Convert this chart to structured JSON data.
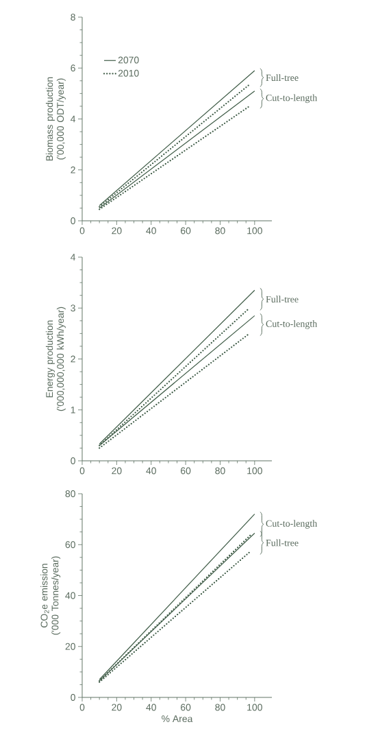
{
  "chart_data": [
    {
      "type": "line",
      "ylabel": "Biomass production ('00,000 ODT/year)",
      "xlim": [
        0,
        110
      ],
      "xticks": [
        0,
        20,
        40,
        60,
        80,
        100
      ],
      "ylim": [
        0,
        8
      ],
      "yticks": [
        0,
        2,
        4,
        6,
        8
      ],
      "legend": "top left",
      "marker": "none",
      "series": [
        {
          "name": "2070",
          "color": "#3d5a45",
          "line_style": "solid",
          "x": [
            10,
            100
          ],
          "values": [
            0.6,
            5.9
          ]
        },
        {
          "name": "2010",
          "color": "#3d5a45",
          "line_style": "dotted",
          "x": [
            10,
            97
          ],
          "values": [
            0.55,
            5.35
          ]
        },
        {
          "color": "#3d5a45",
          "line_style": "solid",
          "x": [
            10,
            100
          ],
          "values": [
            0.5,
            5.1
          ]
        },
        {
          "color": "#3d5a45",
          "line_style": "dotted",
          "x": [
            10,
            97
          ],
          "values": [
            0.45,
            4.5
          ]
        }
      ],
      "annotations": [
        "Full-tree",
        "Cut-to-length"
      ]
    },
    {
      "type": "line",
      "ylabel": "Energy production ('000,000,000 kWh/year)",
      "xlim": [
        0,
        110
      ],
      "xticks": [
        0,
        20,
        40,
        60,
        80,
        100
      ],
      "ylim": [
        0,
        4
      ],
      "yticks": [
        0,
        1,
        2,
        3,
        4
      ],
      "marker": "none",
      "series": [
        {
          "color": "#3d5a45",
          "line_style": "solid",
          "x": [
            10,
            100
          ],
          "values": [
            0.33,
            3.35
          ]
        },
        {
          "color": "#3d5a45",
          "line_style": "dotted",
          "x": [
            10,
            97
          ],
          "values": [
            0.3,
            3.0
          ]
        },
        {
          "color": "#3d5a45",
          "line_style": "solid",
          "x": [
            10,
            100
          ],
          "values": [
            0.3,
            2.85
          ]
        },
        {
          "color": "#3d5a45",
          "line_style": "dotted",
          "x": [
            10,
            97
          ],
          "values": [
            0.25,
            2.5
          ]
        }
      ],
      "annotations": [
        "Full-tree",
        "Cut-to-length"
      ]
    },
    {
      "type": "line",
      "xlabel": "% Area",
      "ylabel": "CO$_{2}$e emission ('000 Tonnes/year)",
      "xlim": [
        0,
        110
      ],
      "xticks": [
        0,
        20,
        40,
        60,
        80,
        100
      ],
      "ylim": [
        0,
        80
      ],
      "yticks": [
        0,
        20,
        40,
        60,
        80
      ],
      "marker": "none",
      "series": [
        {
          "color": "#3d5a45",
          "line_style": "solid",
          "x": [
            10,
            100
          ],
          "values": [
            7,
            72
          ]
        },
        {
          "color": "#3d5a45",
          "line_style": "dotted",
          "x": [
            10,
            98
          ],
          "values": [
            6.5,
            64
          ]
        },
        {
          "color": "#3d5a45",
          "line_style": "solid",
          "x": [
            10,
            100
          ],
          "values": [
            6.5,
            64.5
          ]
        },
        {
          "color": "#3d5a45",
          "line_style": "dotted",
          "x": [
            10,
            97
          ],
          "values": [
            6,
            57
          ]
        }
      ],
      "annotations": [
        "Cut-to-length",
        "Full-tree"
      ]
    }
  ]
}
